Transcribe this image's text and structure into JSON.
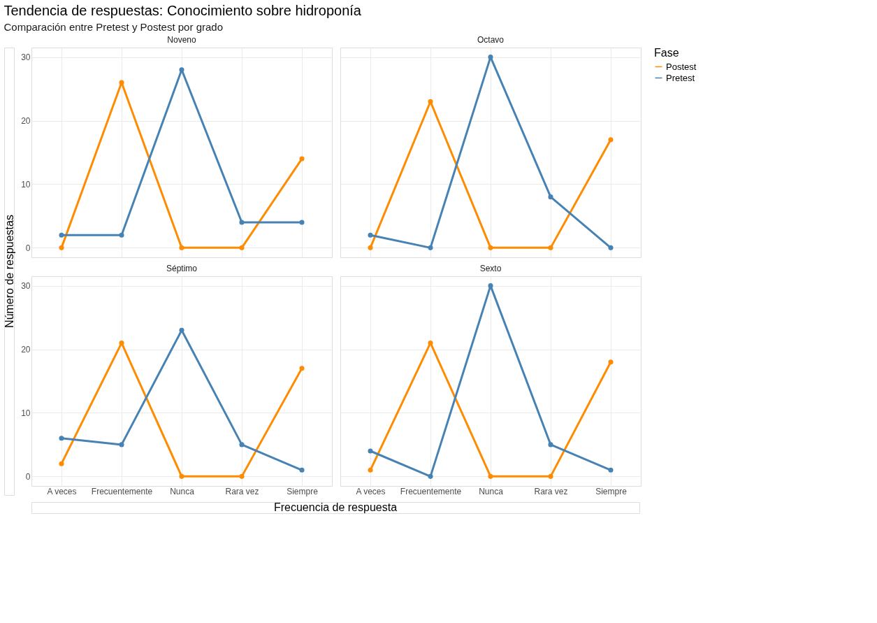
{
  "chart_data": [
    {
      "type": "line",
      "title": "Noveno",
      "categories": [
        "A veces",
        "Frecuentemente",
        "Nunca",
        "Rara vez",
        "Siempre"
      ],
      "marker": "circle",
      "grid": true,
      "ylim": [
        -1.5,
        31.5
      ],
      "yticks": [
        0,
        10,
        20,
        30
      ],
      "tick_labels": "y",
      "legend": "right",
      "legend_title": "Fase",
      "xlabel": "Frecuencia de respuesta",
      "ylabel": "Número de respuestas",
      "annotations": [
        "Tendencia de respuestas: Conocimiento sobre hidroponía",
        "Comparación entre Pretest y Postest por grado"
      ],
      "series": [
        {
          "name": "Postest",
          "color": "#ff8c00",
          "values": [
            0,
            26,
            0,
            0,
            14
          ]
        },
        {
          "name": "Pretest",
          "color": "#4682b4",
          "values": [
            2,
            2,
            28,
            4,
            4
          ]
        }
      ]
    },
    {
      "type": "line",
      "title": "Octavo",
      "categories": [
        "A veces",
        "Frecuentemente",
        "Nunca",
        "Rara vez",
        "Siempre"
      ],
      "marker": "circle",
      "grid": true,
      "ylim": [
        -1.5,
        31.5
      ],
      "yticks": [
        0,
        10,
        20,
        30
      ],
      "tick_labels": false,
      "series": [
        {
          "name": "Postest",
          "color": "#ff8c00",
          "values": [
            0,
            23,
            0,
            0,
            17
          ]
        },
        {
          "name": "Pretest",
          "color": "#4682b4",
          "values": [
            2,
            0,
            30,
            8,
            0
          ]
        }
      ]
    },
    {
      "type": "line",
      "title": "Séptimo",
      "categories": [
        "A veces",
        "Frecuentemente",
        "Nunca",
        "Rara vez",
        "Siempre"
      ],
      "marker": "circle",
      "grid": true,
      "ylim": [
        -1.5,
        31.5
      ],
      "yticks": [
        0,
        10,
        20,
        30
      ],
      "series": [
        {
          "name": "Postest",
          "color": "#ff8c00",
          "values": [
            2,
            21,
            0,
            0,
            17
          ]
        },
        {
          "name": "Pretest",
          "color": "#4682b4",
          "values": [
            6,
            5,
            23,
            5,
            1
          ]
        }
      ]
    },
    {
      "type": "line",
      "title": "Sexto",
      "categories": [
        "A veces",
        "Frecuentemente",
        "Nunca",
        "Rara vez",
        "Siempre"
      ],
      "marker": "circle",
      "grid": true,
      "ylim": [
        -1.5,
        31.5
      ],
      "yticks": [
        0,
        10,
        20,
        30
      ],
      "tick_labels": "x",
      "series": [
        {
          "name": "Postest",
          "color": "#ff8c00",
          "values": [
            1,
            21,
            0,
            0,
            18
          ]
        },
        {
          "name": "Pretest",
          "color": "#4682b4",
          "values": [
            4,
            0,
            30,
            5,
            1
          ]
        }
      ]
    }
  ]
}
